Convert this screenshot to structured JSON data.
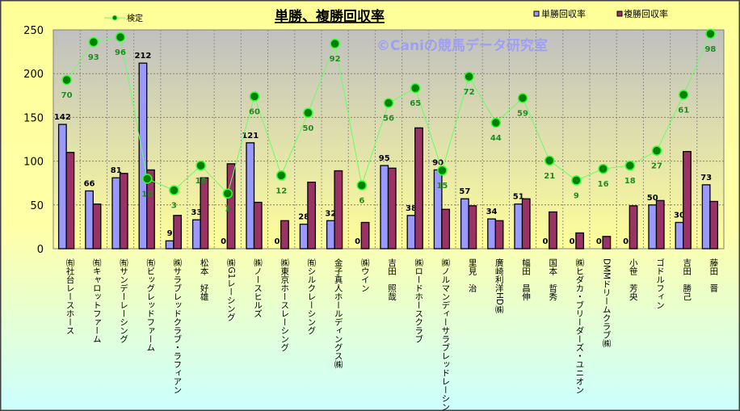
{
  "chart_data": {
    "type": "bar",
    "title": "単勝、複勝回収率",
    "watermark": "©Caniの競馬データ研究室",
    "ylim": [
      0,
      250
    ],
    "yticks": [
      0,
      50,
      100,
      150,
      200,
      250
    ],
    "grid": true,
    "legend_placement": "top",
    "categories": [
      "㈲社台レースホース",
      "㈲キャロットファーム",
      "㈲サンデーレーシング",
      "㈲ビッグレッドファーム",
      "㈱サラブレッドクラブ・ラフィアン",
      "松本　好雄",
      "㈱G1レーシング",
      "㈱ノースヒルズ",
      "㈱東京ホースレーシング",
      "㈲シルクレーシング",
      "金子真人ホールディングス㈱",
      "㈱ウイン",
      "吉田　照哉",
      "㈱ロードホースクラブ",
      "㈱ノルマンディーサラブレッドレーシング",
      "里見　治",
      "廣崎利洋HD㈱",
      "幅田　昌伸",
      "国本　哲秀",
      "㈱ヒダカ・ブリーダーズ・ユニオン",
      "DMMドリームクラブ㈱",
      "小笹　芳央",
      "ゴドルフィン",
      "吉田　勝己",
      "藤田　晋"
    ],
    "series": [
      {
        "name": "単勝回収率",
        "type": "bar",
        "color": "#9999ff",
        "labels": true,
        "values": [
          142,
          66,
          81,
          212,
          9,
          33,
          0,
          121,
          0,
          28,
          32,
          0,
          95,
          38,
          90,
          57,
          34,
          51,
          0,
          0,
          0,
          0,
          50,
          30,
          73
        ]
      },
      {
        "name": "複勝回収率",
        "type": "bar",
        "color": "#993366",
        "labels": false,
        "values": [
          110,
          51,
          86,
          90,
          38,
          81,
          97,
          53,
          32,
          76,
          89,
          30,
          92,
          138,
          45,
          49,
          32,
          57,
          42,
          18,
          14,
          49,
          55,
          111,
          54
        ]
      },
      {
        "name": "検定",
        "type": "line",
        "color": "#66ff66",
        "marker": "#008000",
        "axis_range": [
          -32.5,
          100.4
        ],
        "labels": true,
        "values": [
          70,
          93,
          96,
          10,
          3,
          18,
          1,
          60,
          12,
          50,
          92,
          6,
          56,
          65,
          15,
          72,
          44,
          59,
          21,
          9,
          16,
          18,
          27,
          61,
          98
        ]
      }
    ]
  }
}
